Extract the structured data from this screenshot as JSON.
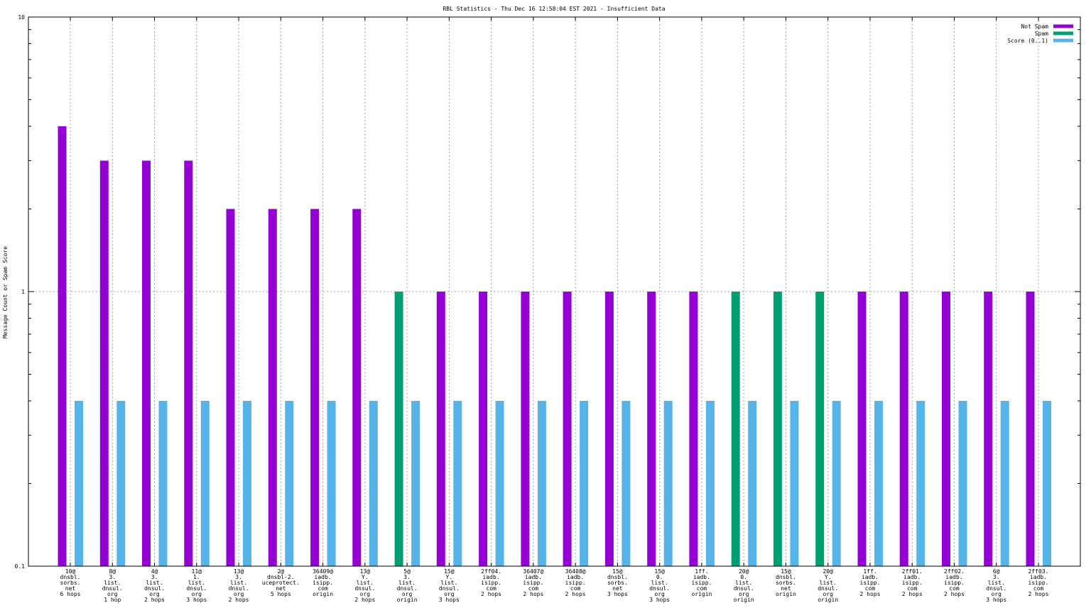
{
  "chart_data": {
    "type": "bar",
    "title": "RBL Statistics - Thu Dec 16 12:58:04 EST 2021 - Insufficient Data",
    "ylabel": "Message Count or Spam Score",
    "xlabel": "",
    "yscale": "log",
    "ylim": [
      0.1,
      10
    ],
    "yticks": [
      {
        "value": 10,
        "label": "10"
      },
      {
        "value": 1,
        "label": "1"
      },
      {
        "value": 0.1,
        "label": "0.1"
      }
    ],
    "grid": true,
    "legend_position": "top-right",
    "categories": [
      [
        "10@",
        "dnsbl.",
        "sorbs.",
        "net",
        "6 hops"
      ],
      [
        "8@",
        "3.",
        "list.",
        "dnsul.",
        "org",
        "1 hop"
      ],
      [
        "4@",
        "3.",
        "list.",
        "dnsul.",
        "org",
        "2 hops"
      ],
      [
        "11@",
        "1.",
        "list.",
        "dnsul.",
        "org",
        "3 hops"
      ],
      [
        "13@",
        "3.",
        "list.",
        "dnsul.",
        "org",
        "2 hops"
      ],
      [
        "2@",
        "dnsbl-2.",
        "uceprotect.",
        "net",
        "5 hops"
      ],
      [
        "36409@",
        "iadb.",
        "isipp.",
        "com",
        "origin"
      ],
      [
        "13@",
        "Y.",
        "list.",
        "dnsul.",
        "org",
        "2 hops"
      ],
      [
        "5@",
        "3.",
        "list.",
        "dnsul.",
        "org",
        "origin"
      ],
      [
        "15@",
        "Y.",
        "list.",
        "dnsul.",
        "org",
        "3 hops"
      ],
      [
        "2ff04.",
        "iadb.",
        "isipp.",
        "com",
        "2 hops"
      ],
      [
        "36407@",
        "iadb.",
        "isipp.",
        "com",
        "2 hops"
      ],
      [
        "36408@",
        "iadb.",
        "isipp.",
        "com",
        "2 hops"
      ],
      [
        "15@",
        "dnsbl.",
        "sorbs.",
        "net",
        "3 hops"
      ],
      [
        "15@",
        "0.",
        "list.",
        "dnsul.",
        "org",
        "3 hops"
      ],
      [
        "1ff.",
        "iadb.",
        "isipp.",
        "com",
        "origin"
      ],
      [
        "20@",
        "0.",
        "list.",
        "dnsul.",
        "org",
        "origin"
      ],
      [
        "15@",
        "dnsbl.",
        "sorbs.",
        "net",
        "origin"
      ],
      [
        "20@",
        "Y.",
        "list.",
        "dnsul.",
        "org",
        "origin"
      ],
      [
        "1ff.",
        "iadb.",
        "isipp.",
        "com",
        "2 hops"
      ],
      [
        "2ff01.",
        "iadb.",
        "isipp.",
        "com",
        "2 hops"
      ],
      [
        "2ff02.",
        "iadb.",
        "isipp.",
        "com",
        "2 hops"
      ],
      [
        "6@",
        "3.",
        "list.",
        "dnsul.",
        "org",
        "3 hops"
      ],
      [
        "2ff03.",
        "iadb.",
        "isipp.",
        "com",
        "2 hops"
      ]
    ],
    "series": [
      {
        "name": "Not Spam",
        "color": "#9400d3",
        "values": [
          4,
          3,
          3,
          3,
          2,
          2,
          2,
          2,
          null,
          1,
          1,
          1,
          1,
          1,
          1,
          1,
          null,
          null,
          null,
          1,
          1,
          1,
          1,
          1
        ]
      },
      {
        "name": "Spam",
        "color": "#009e73",
        "values": [
          null,
          null,
          null,
          null,
          null,
          null,
          null,
          null,
          1,
          null,
          null,
          null,
          null,
          null,
          null,
          null,
          1,
          1,
          1,
          null,
          null,
          null,
          null,
          null
        ]
      },
      {
        "name": "Score (0..1)",
        "color": "#56b4e9",
        "values": [
          0.4,
          0.4,
          0.4,
          0.4,
          0.4,
          0.4,
          0.4,
          0.4,
          0.4,
          0.4,
          0.4,
          0.4,
          0.4,
          0.4,
          0.4,
          0.4,
          0.4,
          0.4,
          0.4,
          0.4,
          0.4,
          0.4,
          0.4,
          0.4
        ]
      }
    ]
  }
}
